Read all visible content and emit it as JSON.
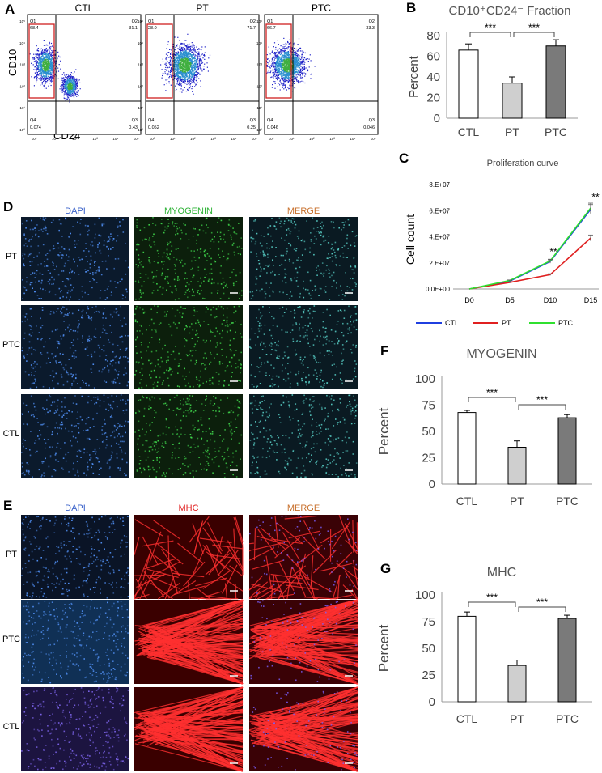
{
  "panels": {
    "A": "A",
    "B": "B",
    "C": "C",
    "D": "D",
    "E": "E",
    "F": "F",
    "G": "G"
  },
  "flow": {
    "ylabel": "CD10",
    "xlabel": "CD24",
    "plots": [
      {
        "name": "CTL",
        "q1": "Q1",
        "q2": "Q2",
        "q3": "Q3",
        "q4": "Q4",
        "v1": "68.4",
        "v2": "31.1",
        "v3": "0.43",
        "v4": "0.074"
      },
      {
        "name": "PT",
        "q1": "Q1",
        "q2": "Q2",
        "q3": "Q3",
        "q4": "Q4",
        "v1": "28.0",
        "v2": "71.7",
        "v3": "0.25",
        "v4": "0.052"
      },
      {
        "name": "PTC",
        "q1": "Q1",
        "q2": "Q2",
        "q3": "Q3",
        "q4": "Q4",
        "v1": "66.7",
        "v2": "33.3",
        "v3": "0.046",
        "v4": "0.046"
      }
    ],
    "ticks_y": [
      "10⁵",
      "10⁴",
      "10³",
      "10²",
      "10¹",
      "10⁰"
    ],
    "ticks_x": [
      "10⁰",
      "10¹",
      "10²",
      "10³",
      "10⁴",
      "10⁵"
    ]
  },
  "micro": {
    "D": {
      "cols": [
        "DAPI",
        "MYOGENIN",
        "MERGE"
      ],
      "rows": [
        "PT",
        "PTC",
        "CTL"
      ]
    },
    "E": {
      "cols": [
        "DAPI",
        "MHC",
        "MERGE"
      ],
      "rows": [
        "PT",
        "PTC",
        "CTL"
      ]
    },
    "colors": {
      "dapi": "#3a62c9",
      "myogenin": "#2fb338",
      "merge": "#c8702c",
      "mhc": "#e02020"
    }
  },
  "chart_data": [
    {
      "id": "B",
      "type": "bar",
      "title": "CD10⁺CD24⁻ Fraction",
      "categories": [
        "CTL",
        "PT",
        "PTC"
      ],
      "values": [
        66,
        34,
        70
      ],
      "errors": [
        6,
        6,
        6
      ],
      "ylabel": "Percent",
      "ylim": [
        0,
        80
      ],
      "yticks": [
        0,
        20,
        40,
        60,
        80
      ],
      "colors": [
        "#ffffff",
        "#cfcfcf",
        "#7a7a7a"
      ],
      "sig": [
        "***",
        "***"
      ]
    },
    {
      "id": "C",
      "type": "line",
      "title": "Proliferation curve",
      "categories": [
        "D0",
        "D5",
        "D10",
        "D15"
      ],
      "ylabel": "Cell count",
      "ylim": [
        0,
        80000000
      ],
      "yticks_labels": [
        "0.0E+00",
        "2.E+07",
        "4.E+07",
        "6.E+07",
        "8.E+07"
      ],
      "series": [
        {
          "name": "CTL",
          "values": [
            0,
            6000000,
            21000000,
            61000000
          ],
          "color": "#1f3fe0"
        },
        {
          "name": "PT",
          "values": [
            0,
            5000000,
            11000000,
            39000000
          ],
          "color": "#e02020"
        },
        {
          "name": "PTC",
          "values": [
            0,
            6500000,
            21500000,
            62000000
          ],
          "color": "#2fe02f"
        }
      ],
      "annotations": [
        "**",
        "**"
      ]
    },
    {
      "id": "F",
      "type": "bar",
      "title": "MYOGENIN",
      "categories": [
        "CTL",
        "PT",
        "PTC"
      ],
      "values": [
        68,
        35,
        63
      ],
      "errors": [
        2,
        6,
        3
      ],
      "ylabel": "Percent",
      "ylim": [
        0,
        100
      ],
      "yticks": [
        0,
        25,
        50,
        75,
        100
      ],
      "colors": [
        "#ffffff",
        "#cfcfcf",
        "#7a7a7a"
      ],
      "sig": [
        "***",
        "***"
      ]
    },
    {
      "id": "G",
      "type": "bar",
      "title": "MHC",
      "categories": [
        "CTL",
        "PT",
        "PTC"
      ],
      "values": [
        80,
        34,
        78
      ],
      "errors": [
        4,
        5,
        3
      ],
      "ylabel": "Percent",
      "ylim": [
        0,
        100
      ],
      "yticks": [
        0,
        25,
        50,
        75,
        100
      ],
      "colors": [
        "#ffffff",
        "#cfcfcf",
        "#7a7a7a"
      ],
      "sig": [
        "***",
        "***"
      ]
    }
  ]
}
